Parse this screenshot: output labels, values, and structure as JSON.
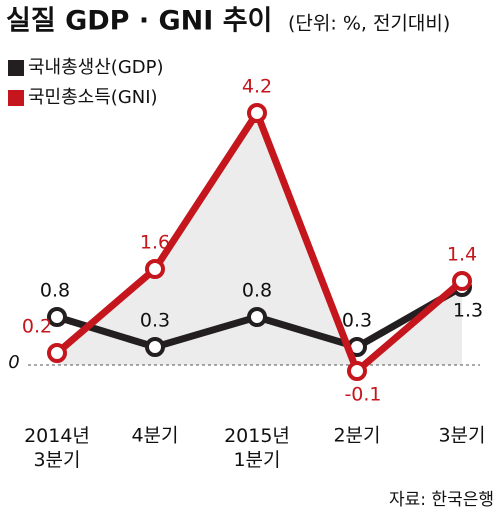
{
  "chart_data": {
    "type": "line",
    "title": "실질 GDP · GNI 추이",
    "subtitle": "(단위: %, 전기대비)",
    "categories": [
      "2014년\n3분기",
      "4분기",
      "2015년\n1분기",
      "2분기",
      "3분기"
    ],
    "series": [
      {
        "name": "국내총생산(GDP)",
        "color": "#231f20",
        "values": [
          0.8,
          0.3,
          0.8,
          0.3,
          1.3
        ]
      },
      {
        "name": "국민총소득(GNI)",
        "color": "#c4161c",
        "values": [
          0.2,
          1.6,
          4.2,
          -0.1,
          1.4
        ]
      }
    ],
    "ylim": [
      -0.9,
      4.6
    ],
    "yticks": [
      0
    ],
    "source": "자료: 한국은행"
  }
}
